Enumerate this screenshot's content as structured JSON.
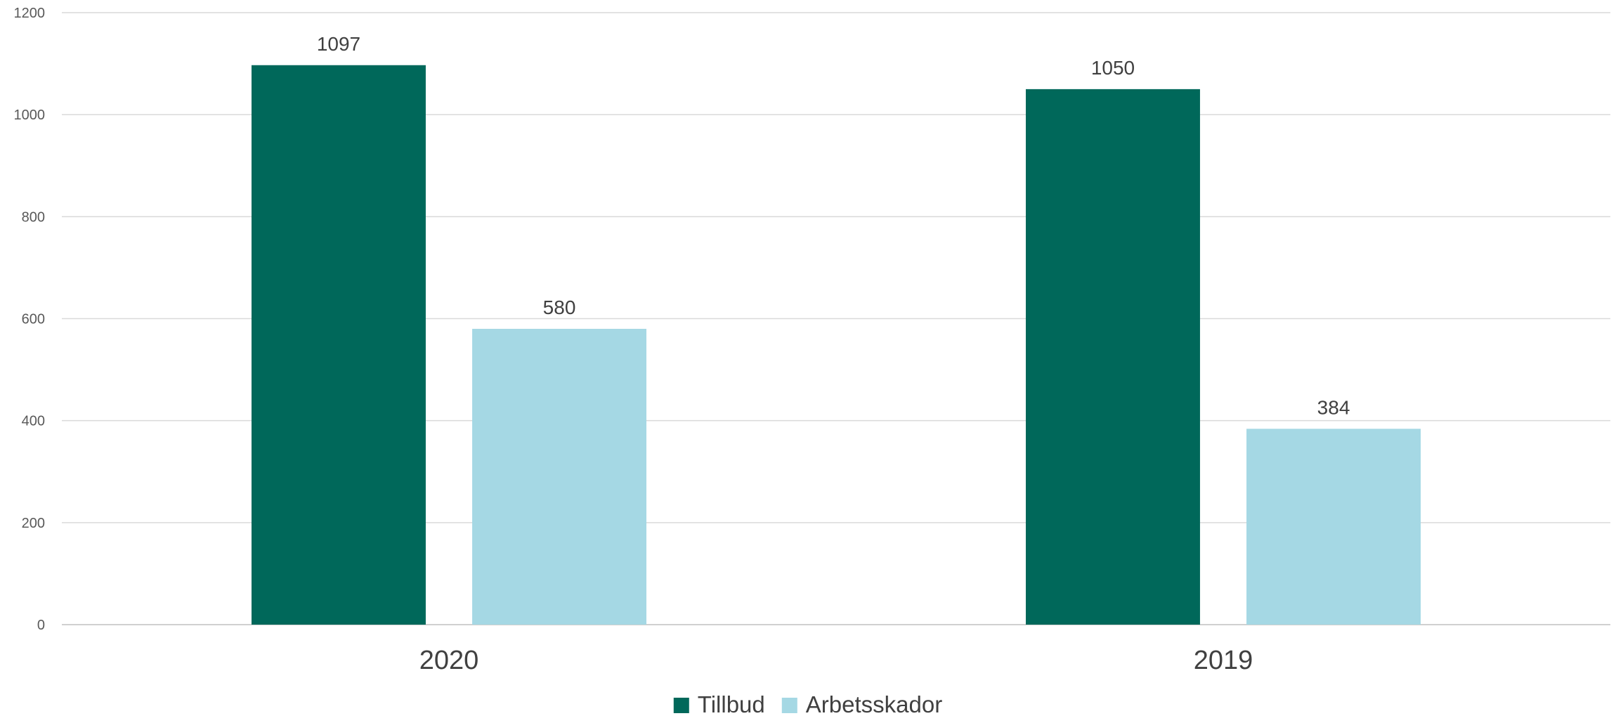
{
  "chart_data": {
    "type": "bar",
    "categories": [
      "2020",
      "2019"
    ],
    "series": [
      {
        "name": "Tillbud",
        "values": [
          1097,
          1050
        ],
        "color": "#00685a"
      },
      {
        "name": "Arbetsskador",
        "values": [
          580,
          384
        ],
        "color": "#a5d8e4"
      }
    ],
    "ylim": [
      0,
      1200
    ],
    "yticks": [
      0,
      200,
      400,
      600,
      800,
      1000,
      1200
    ],
    "grid": true,
    "legend_position": "bottom",
    "title": "",
    "xlabel": "",
    "ylabel": ""
  }
}
